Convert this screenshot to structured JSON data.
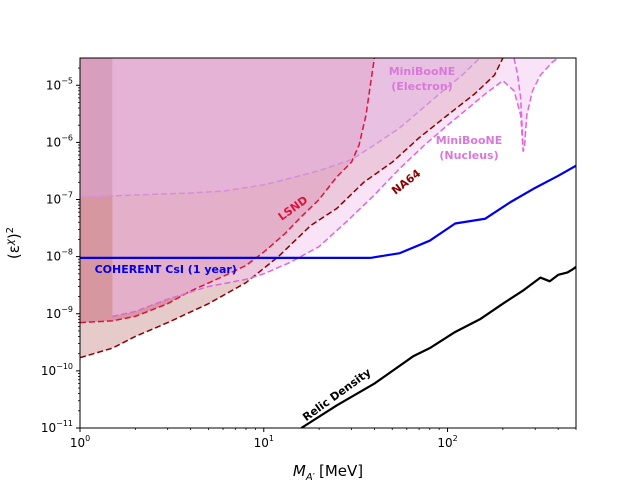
{
  "chart_data": {
    "type": "line",
    "xlabel_main": "M",
    "xlabel_sub": "A′",
    "xlabel_unit": "[MeV]",
    "ylabel_main": "(ε",
    "ylabel_sup": "χ",
    "ylabel_tail": ")",
    "ylabel_pow": "2",
    "x_scale": "log",
    "y_scale": "log",
    "xlim": [
      1,
      500
    ],
    "ylim": [
      1e-11,
      3e-05
    ],
    "grid": false,
    "x_ticks": [
      {
        "value": 1,
        "base": "10",
        "exp": "0"
      },
      {
        "value": 10,
        "base": "10",
        "exp": "1"
      },
      {
        "value": 100,
        "base": "10",
        "exp": "2"
      }
    ],
    "y_ticks": [
      {
        "value": 1e-11,
        "base": "10",
        "exp": "−11"
      },
      {
        "value": 1e-10,
        "base": "10",
        "exp": "−10"
      },
      {
        "value": 1e-09,
        "base": "10",
        "exp": "−9"
      },
      {
        "value": 1e-08,
        "base": "10",
        "exp": "−8"
      },
      {
        "value": 1e-07,
        "base": "10",
        "exp": "−7"
      },
      {
        "value": 1e-06,
        "base": "10",
        "exp": "−6"
      },
      {
        "value": 1e-05,
        "base": "10",
        "exp": "−5"
      }
    ],
    "series": [
      {
        "name": "LSND",
        "color": "#dc143c",
        "fill": "#d0607f",
        "fill_opacity": 0.72,
        "line_style": "dashed",
        "label_anchor": {
          "x": 12.5,
          "y": 4.2e-08
        },
        "label_angle": -36,
        "points": [
          [
            1,
            7e-10
          ],
          [
            1.5,
            7.5e-10
          ],
          [
            2,
            9e-10
          ],
          [
            3,
            1.5e-09
          ],
          [
            4,
            2.5e-09
          ],
          [
            6,
            4.5e-09
          ],
          [
            8,
            7e-09
          ],
          [
            10,
            1.2e-08
          ],
          [
            13,
            2.5e-08
          ],
          [
            16,
            5e-08
          ],
          [
            20,
            1e-07
          ],
          [
            25,
            2.5e-07
          ],
          [
            30,
            4.5e-07
          ],
          [
            33,
            9e-07
          ],
          [
            36,
            3e-06
          ],
          [
            38,
            1e-05
          ],
          [
            40,
            3e-05
          ]
        ]
      },
      {
        "name": "NA64",
        "color": "#8b0000",
        "fill": "#d2a0a0",
        "fill_opacity": 0.55,
        "line_style": "dashed",
        "label_anchor": {
          "x": 52,
          "y": 1.2e-07
        },
        "label_angle": -38,
        "points": [
          [
            1,
            1.7e-10
          ],
          [
            1.5,
            2.5e-10
          ],
          [
            2,
            4e-10
          ],
          [
            3,
            7e-10
          ],
          [
            5,
            1.5e-09
          ],
          [
            8,
            3.5e-09
          ],
          [
            12,
            1e-08
          ],
          [
            18,
            3.5e-08
          ],
          [
            25,
            7e-08
          ],
          [
            35,
            2e-07
          ],
          [
            50,
            4.5e-07
          ],
          [
            70,
            1.2e-06
          ],
          [
            100,
            3e-06
          ],
          [
            140,
            7e-06
          ],
          [
            180,
            1.5e-05
          ],
          [
            200,
            3e-05
          ]
        ]
      },
      {
        "name": "MiniBooNE (Electron)",
        "color": "#d48fd8",
        "fill": "#d8a8e0",
        "fill_opacity": 0.45,
        "line_style": "dashed",
        "points": [
          [
            1,
            1.1e-07
          ],
          [
            2,
            1.2e-07
          ],
          [
            4,
            1.3e-07
          ],
          [
            6,
            1.4e-07
          ],
          [
            10,
            1.8e-07
          ],
          [
            15,
            2.5e-07
          ],
          [
            20,
            3.2e-07
          ],
          [
            30,
            5e-07
          ],
          [
            40,
            9e-07
          ],
          [
            55,
            1.8e-06
          ],
          [
            70,
            3.5e-06
          ],
          [
            90,
            7e-06
          ],
          [
            120,
            1.5e-05
          ],
          [
            150,
            3e-05
          ]
        ]
      },
      {
        "name": "MiniBooNE (Nucleus)",
        "color": "#e066d8",
        "fill": "#f2c8f0",
        "fill_opacity": 0.5,
        "line_style": "dashed",
        "points": [
          [
            1.5,
            9e-10
          ],
          [
            2,
            1.1e-09
          ],
          [
            3,
            1.8e-09
          ],
          [
            5,
            3e-09
          ],
          [
            8,
            4e-09
          ],
          [
            10,
            5e-09
          ],
          [
            14,
            8e-09
          ],
          [
            20,
            1.5e-08
          ],
          [
            28,
            4e-08
          ],
          [
            40,
            1.2e-07
          ],
          [
            55,
            3.5e-07
          ],
          [
            75,
            9e-07
          ],
          [
            100,
            2e-06
          ],
          [
            130,
            4e-06
          ],
          [
            160,
            7e-06
          ],
          [
            200,
            1.2e-05
          ],
          [
            230,
            8e-06
          ],
          [
            250,
            3e-06
          ],
          [
            258,
            7e-07
          ],
          [
            262,
            8e-07
          ],
          [
            270,
            3e-06
          ],
          [
            290,
            8e-06
          ],
          [
            320,
            1.5e-05
          ],
          [
            370,
            2.5e-05
          ],
          [
            400,
            3e-05
          ]
        ]
      },
      {
        "name": "MiniBooNE (Nucleus) upper",
        "color": "#e066d8",
        "line_style": "dashed",
        "points": [
          [
            230,
            3e-05
          ],
          [
            240,
            1.6e-05
          ],
          [
            250,
            6e-06
          ],
          [
            258,
            7e-07
          ]
        ]
      },
      {
        "name": "COHERENT CsI (1 year)",
        "color": "#0000ee",
        "line_style": "solid",
        "label_anchor": {
          "x": 1.2,
          "y": 5.2e-09
        },
        "points": [
          [
            1,
            9.5e-09
          ],
          [
            38,
            9.5e-09
          ],
          [
            55,
            1.15e-08
          ],
          [
            80,
            1.9e-08
          ],
          [
            110,
            3.8e-08
          ],
          [
            160,
            4.6e-08
          ],
          [
            220,
            9e-08
          ],
          [
            300,
            1.6e-07
          ],
          [
            400,
            2.6e-07
          ],
          [
            500,
            3.9e-07
          ]
        ]
      },
      {
        "name": "Relic Density",
        "color": "#000000",
        "line_style": "solid",
        "label_anchor": {
          "x": 17,
          "y": 1.3e-11
        },
        "label_angle": -36,
        "points": [
          [
            16,
            1e-11
          ],
          [
            25,
            2.5e-11
          ],
          [
            40,
            6e-11
          ],
          [
            65,
            1.8e-10
          ],
          [
            80,
            2.5e-10
          ],
          [
            110,
            4.8e-10
          ],
          [
            150,
            8e-10
          ],
          [
            200,
            1.5e-09
          ],
          [
            260,
            2.6e-09
          ],
          [
            320,
            4.3e-09
          ],
          [
            360,
            3.7e-09
          ],
          [
            400,
            4.8e-09
          ],
          [
            450,
            5.3e-09
          ],
          [
            480,
            6e-09
          ],
          [
            500,
            6.6e-09
          ]
        ]
      }
    ],
    "labels": [
      {
        "id": "lsnd",
        "text": "LSND",
        "color": "#dc143c"
      },
      {
        "id": "na64",
        "text": "NA64",
        "color": "#8b0000"
      },
      {
        "id": "mbe1",
        "text": "MiniBooNE",
        "color": "#da78da"
      },
      {
        "id": "mbe2",
        "text": "(Electron)",
        "color": "#da78da"
      },
      {
        "id": "mbn1",
        "text": "MiniBooNE",
        "color": "#da78da"
      },
      {
        "id": "mbn2",
        "text": "(Nucleus)",
        "color": "#da78da"
      },
      {
        "id": "coherent",
        "text": "COHERENT CsI (1 year)",
        "color": "#0000ee"
      },
      {
        "id": "relic",
        "text": "Relic Density",
        "color": "#000000"
      }
    ]
  }
}
